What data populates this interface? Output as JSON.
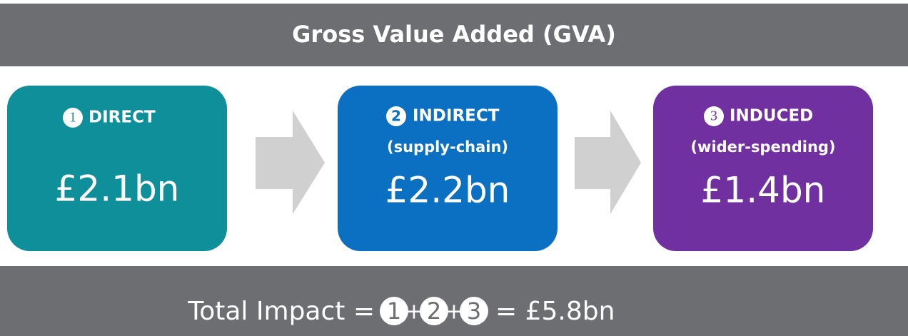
{
  "title": "Gross Value Added (GVA)",
  "stages": [
    {
      "number": "1",
      "label": "DIRECT",
      "value": "£2.1bn"
    },
    {
      "number": "2",
      "label": "INDIRECT",
      "sublabel": "(supply-chain)",
      "value": "£2.2bn"
    },
    {
      "number": "3",
      "label": "INDUCED",
      "sublabel": "(wider-spending)",
      "value": "£1.4bn"
    }
  ],
  "total": {
    "label": "Total Impact =",
    "terms": [
      "1",
      "2",
      "3"
    ],
    "operator": "+",
    "result": "= £5.8bn"
  }
}
